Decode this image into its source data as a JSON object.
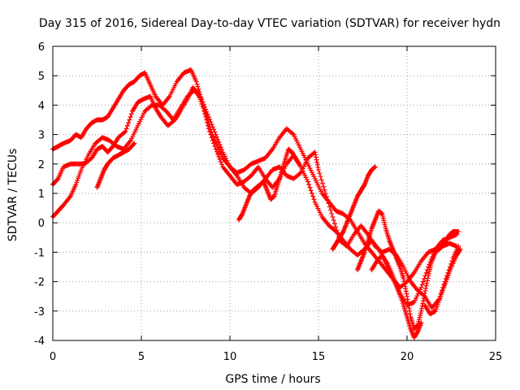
{
  "chart_data": {
    "type": "scatter",
    "title": "Day 315 of 2016, Sidereal Day-to-day VTEC variation (SDTVAR) for receiver hydn",
    "xlabel": "GPS time / hours",
    "ylabel": "SDTVAR / TECUs",
    "xlim": [
      0,
      25
    ],
    "ylim": [
      -4,
      6
    ],
    "xticks": [
      0,
      5,
      10,
      15,
      20,
      25
    ],
    "yticks": [
      -4,
      -3,
      -2,
      -1,
      0,
      1,
      2,
      3,
      4,
      5,
      6
    ],
    "grid": true,
    "marker": "+",
    "color": "#ff0000",
    "series": [
      {
        "points": [
          [
            0.0,
            1.3
          ],
          [
            0.3,
            1.5
          ],
          [
            0.6,
            1.9
          ],
          [
            1.0,
            2.0
          ],
          [
            1.4,
            2.0
          ],
          [
            1.8,
            2.0
          ],
          [
            2.2,
            2.2
          ],
          [
            2.5,
            2.5
          ],
          [
            2.8,
            2.6
          ],
          [
            3.1,
            2.4
          ],
          [
            3.4,
            2.6
          ],
          [
            3.7,
            2.9
          ],
          [
            4.1,
            3.1
          ],
          [
            4.5,
            3.8
          ],
          [
            4.8,
            4.1
          ],
          [
            5.1,
            4.2
          ],
          [
            5.5,
            4.3
          ],
          [
            5.8,
            3.9
          ],
          [
            6.1,
            3.6
          ],
          [
            6.5,
            3.3
          ],
          [
            6.9,
            3.5
          ],
          [
            7.2,
            3.8
          ],
          [
            7.6,
            4.2
          ],
          [
            7.9,
            4.6
          ],
          [
            8.2,
            4.4
          ],
          [
            8.5,
            3.9
          ],
          [
            8.8,
            3.2
          ],
          [
            9.2,
            2.5
          ],
          [
            9.6,
            1.9
          ],
          [
            10.0,
            1.6
          ],
          [
            10.4,
            1.3
          ],
          [
            10.8,
            1.4
          ],
          [
            11.2,
            1.6
          ],
          [
            11.6,
            1.9
          ],
          [
            12.0,
            1.5
          ],
          [
            12.4,
            1.2
          ],
          [
            12.8,
            1.5
          ],
          [
            13.2,
            2.0
          ],
          [
            13.6,
            2.3
          ],
          [
            14.0,
            1.9
          ],
          [
            14.4,
            1.4
          ],
          [
            14.8,
            0.7
          ],
          [
            15.2,
            0.2
          ],
          [
            15.6,
            -0.1
          ],
          [
            16.0,
            -0.3
          ],
          [
            16.4,
            -0.6
          ],
          [
            16.8,
            -0.9
          ],
          [
            17.2,
            -1.1
          ],
          [
            17.6,
            -0.9
          ],
          [
            18.0,
            -0.6
          ],
          [
            18.4,
            -0.9
          ],
          [
            18.8,
            -1.4
          ],
          [
            19.2,
            -1.9
          ],
          [
            19.6,
            -2.4
          ],
          [
            20.0,
            -2.8
          ],
          [
            20.4,
            -2.7
          ],
          [
            20.8,
            -2.2
          ],
          [
            21.2,
            -1.5
          ],
          [
            21.6,
            -0.9
          ],
          [
            22.0,
            -0.6
          ],
          [
            22.4,
            -0.5
          ],
          [
            22.8,
            -0.4
          ]
        ]
      },
      {
        "points": [
          [
            0.0,
            2.5
          ],
          [
            0.3,
            2.6
          ],
          [
            0.6,
            2.7
          ],
          [
            1.0,
            2.8
          ],
          [
            1.3,
            3.0
          ],
          [
            1.6,
            2.9
          ],
          [
            1.9,
            3.2
          ],
          [
            2.2,
            3.4
          ],
          [
            2.5,
            3.5
          ],
          [
            2.8,
            3.5
          ],
          [
            3.1,
            3.6
          ],
          [
            3.4,
            3.9
          ],
          [
            3.7,
            4.2
          ],
          [
            4.0,
            4.5
          ],
          [
            4.3,
            4.7
          ],
          [
            4.6,
            4.8
          ],
          [
            4.9,
            5.0
          ],
          [
            5.2,
            5.1
          ],
          [
            5.5,
            4.7
          ],
          [
            5.8,
            4.3
          ],
          [
            6.2,
            4.0
          ],
          [
            6.6,
            4.3
          ],
          [
            7.0,
            4.8
          ],
          [
            7.4,
            5.1
          ],
          [
            7.8,
            5.2
          ],
          [
            8.1,
            4.8
          ],
          [
            8.4,
            4.2
          ],
          [
            8.7,
            3.6
          ],
          [
            9.0,
            3.0
          ],
          [
            9.3,
            2.6
          ],
          [
            9.6,
            2.2
          ],
          [
            10.0,
            1.9
          ],
          [
            10.4,
            1.7
          ],
          [
            10.8,
            1.8
          ],
          [
            11.2,
            2.0
          ],
          [
            11.6,
            2.1
          ],
          [
            12.0,
            2.2
          ],
          [
            12.4,
            2.5
          ],
          [
            12.8,
            2.9
          ],
          [
            13.2,
            3.2
          ],
          [
            13.6,
            3.0
          ],
          [
            14.0,
            2.5
          ],
          [
            14.4,
            2.0
          ],
          [
            14.8,
            1.5
          ],
          [
            15.2,
            1.0
          ],
          [
            15.6,
            0.7
          ],
          [
            16.0,
            0.4
          ],
          [
            16.4,
            0.3
          ],
          [
            16.8,
            0.1
          ],
          [
            17.2,
            -0.3
          ],
          [
            17.6,
            -0.7
          ],
          [
            18.0,
            -1.0
          ],
          [
            18.4,
            -1.3
          ],
          [
            18.8,
            -1.6
          ],
          [
            19.2,
            -1.9
          ],
          [
            19.6,
            -2.2
          ],
          [
            20.0,
            -2.0
          ],
          [
            20.4,
            -1.7
          ],
          [
            20.8,
            -1.3
          ],
          [
            21.2,
            -1.0
          ],
          [
            21.6,
            -0.9
          ],
          [
            22.0,
            -0.8
          ],
          [
            22.4,
            -0.7
          ],
          [
            22.8,
            -0.8
          ]
        ]
      },
      {
        "points": [
          [
            0.0,
            0.2
          ],
          [
            0.3,
            0.4
          ],
          [
            0.6,
            0.6
          ],
          [
            1.0,
            0.9
          ],
          [
            1.3,
            1.3
          ],
          [
            1.6,
            1.8
          ],
          [
            2.0,
            2.3
          ],
          [
            2.4,
            2.7
          ],
          [
            2.8,
            2.9
          ],
          [
            3.2,
            2.8
          ],
          [
            3.6,
            2.6
          ],
          [
            4.0,
            2.5
          ],
          [
            4.4,
            2.8
          ],
          [
            4.8,
            3.3
          ],
          [
            5.2,
            3.8
          ],
          [
            5.6,
            4.0
          ],
          [
            6.0,
            4.0
          ],
          [
            6.4,
            3.8
          ],
          [
            6.8,
            3.5
          ],
          [
            7.2,
            3.9
          ],
          [
            7.6,
            4.3
          ],
          [
            8.0,
            4.5
          ],
          [
            8.4,
            4.2
          ],
          [
            8.8,
            3.6
          ],
          [
            9.2,
            3.0
          ],
          [
            9.6,
            2.4
          ],
          [
            10.0,
            1.9
          ],
          [
            10.4,
            1.6
          ],
          [
            10.8,
            1.2
          ],
          [
            11.2,
            1.0
          ],
          [
            11.6,
            1.2
          ],
          [
            12.0,
            1.5
          ],
          [
            12.4,
            1.8
          ],
          [
            12.8,
            1.9
          ],
          [
            13.2,
            1.6
          ],
          [
            13.6,
            1.5
          ],
          [
            14.0,
            1.7
          ],
          [
            14.4,
            2.2
          ],
          [
            14.8,
            2.4
          ],
          [
            15.0,
            1.8
          ],
          [
            15.4,
            1.0
          ],
          [
            15.8,
            0.2
          ],
          [
            16.2,
            -0.6
          ],
          [
            16.6,
            -0.8
          ],
          [
            17.0,
            -0.4
          ],
          [
            17.4,
            -0.1
          ],
          [
            17.8,
            -0.4
          ],
          [
            18.2,
            -0.8
          ],
          [
            18.6,
            -1.0
          ],
          [
            19.0,
            -0.9
          ],
          [
            19.4,
            -1.1
          ],
          [
            19.8,
            -1.5
          ],
          [
            20.2,
            -2.0
          ],
          [
            20.6,
            -2.3
          ],
          [
            21.0,
            -2.5
          ],
          [
            21.4,
            -2.9
          ],
          [
            21.8,
            -2.6
          ],
          [
            22.2,
            -1.9
          ],
          [
            22.6,
            -1.2
          ],
          [
            22.9,
            -0.8
          ]
        ]
      },
      {
        "points": [
          [
            2.5,
            1.2
          ],
          [
            2.7,
            1.5
          ],
          [
            2.9,
            1.8
          ],
          [
            3.1,
            2.0
          ],
          [
            3.4,
            2.2
          ],
          [
            3.7,
            2.3
          ],
          [
            4.0,
            2.4
          ],
          [
            4.3,
            2.5
          ],
          [
            4.6,
            2.7
          ]
        ]
      },
      {
        "points": [
          [
            10.5,
            0.1
          ],
          [
            10.7,
            0.3
          ],
          [
            10.9,
            0.6
          ],
          [
            11.1,
            0.9
          ],
          [
            11.3,
            1.1
          ],
          [
            11.5,
            1.2
          ],
          [
            11.7,
            1.3
          ],
          [
            11.9,
            1.4
          ],
          [
            12.1,
            1.1
          ],
          [
            12.3,
            0.8
          ],
          [
            12.5,
            0.9
          ],
          [
            12.7,
            1.3
          ],
          [
            12.9,
            1.7
          ],
          [
            13.1,
            2.1
          ],
          [
            13.3,
            2.5
          ],
          [
            13.5,
            2.4
          ],
          [
            13.7,
            2.2
          ],
          [
            13.9,
            2.0
          ]
        ]
      },
      {
        "points": [
          [
            15.8,
            -0.9
          ],
          [
            16.0,
            -0.7
          ],
          [
            16.2,
            -0.5
          ],
          [
            16.4,
            -0.3
          ],
          [
            16.6,
            0.0
          ],
          [
            16.8,
            0.3
          ],
          [
            17.0,
            0.6
          ],
          [
            17.2,
            0.9
          ],
          [
            17.4,
            1.1
          ],
          [
            17.6,
            1.3
          ],
          [
            17.8,
            1.6
          ],
          [
            18.0,
            1.8
          ],
          [
            18.2,
            1.9
          ]
        ]
      },
      {
        "points": [
          [
            17.2,
            -1.6
          ],
          [
            17.4,
            -1.3
          ],
          [
            17.6,
            -1.0
          ],
          [
            17.8,
            -0.6
          ],
          [
            18.0,
            -0.2
          ],
          [
            18.2,
            0.1
          ],
          [
            18.4,
            0.4
          ],
          [
            18.6,
            0.3
          ],
          [
            18.8,
            -0.2
          ],
          [
            19.0,
            -0.6
          ],
          [
            19.2,
            -0.9
          ],
          [
            19.4,
            -1.2
          ],
          [
            19.6,
            -1.5
          ],
          [
            19.8,
            -1.9
          ],
          [
            20.0,
            -2.5
          ],
          [
            20.2,
            -3.2
          ],
          [
            20.4,
            -3.6
          ],
          [
            20.6,
            -3.5
          ],
          [
            20.8,
            -3.0
          ],
          [
            21.0,
            -2.4
          ],
          [
            21.2,
            -1.8
          ],
          [
            21.4,
            -1.3
          ],
          [
            21.6,
            -1.0
          ],
          [
            21.8,
            -0.9
          ],
          [
            22.0,
            -0.8
          ],
          [
            22.2,
            -0.6
          ],
          [
            22.4,
            -0.4
          ],
          [
            22.6,
            -0.3
          ],
          [
            22.9,
            -0.3
          ]
        ]
      },
      {
        "points": [
          [
            18.0,
            -1.6
          ],
          [
            18.3,
            -1.3
          ],
          [
            18.6,
            -1.1
          ],
          [
            18.9,
            -1.4
          ],
          [
            19.2,
            -1.8
          ],
          [
            19.5,
            -2.3
          ],
          [
            19.8,
            -2.8
          ],
          [
            20.0,
            -3.2
          ],
          [
            20.2,
            -3.6
          ],
          [
            20.4,
            -3.9
          ],
          [
            20.6,
            -3.7
          ],
          [
            20.8,
            -3.4
          ]
        ]
      },
      {
        "points": [
          [
            21.0,
            -2.8
          ],
          [
            21.3,
            -3.1
          ],
          [
            21.6,
            -3.0
          ],
          [
            21.9,
            -2.5
          ],
          [
            22.2,
            -2.0
          ],
          [
            22.5,
            -1.5
          ],
          [
            22.8,
            -1.1
          ],
          [
            23.0,
            -0.9
          ]
        ]
      }
    ]
  }
}
